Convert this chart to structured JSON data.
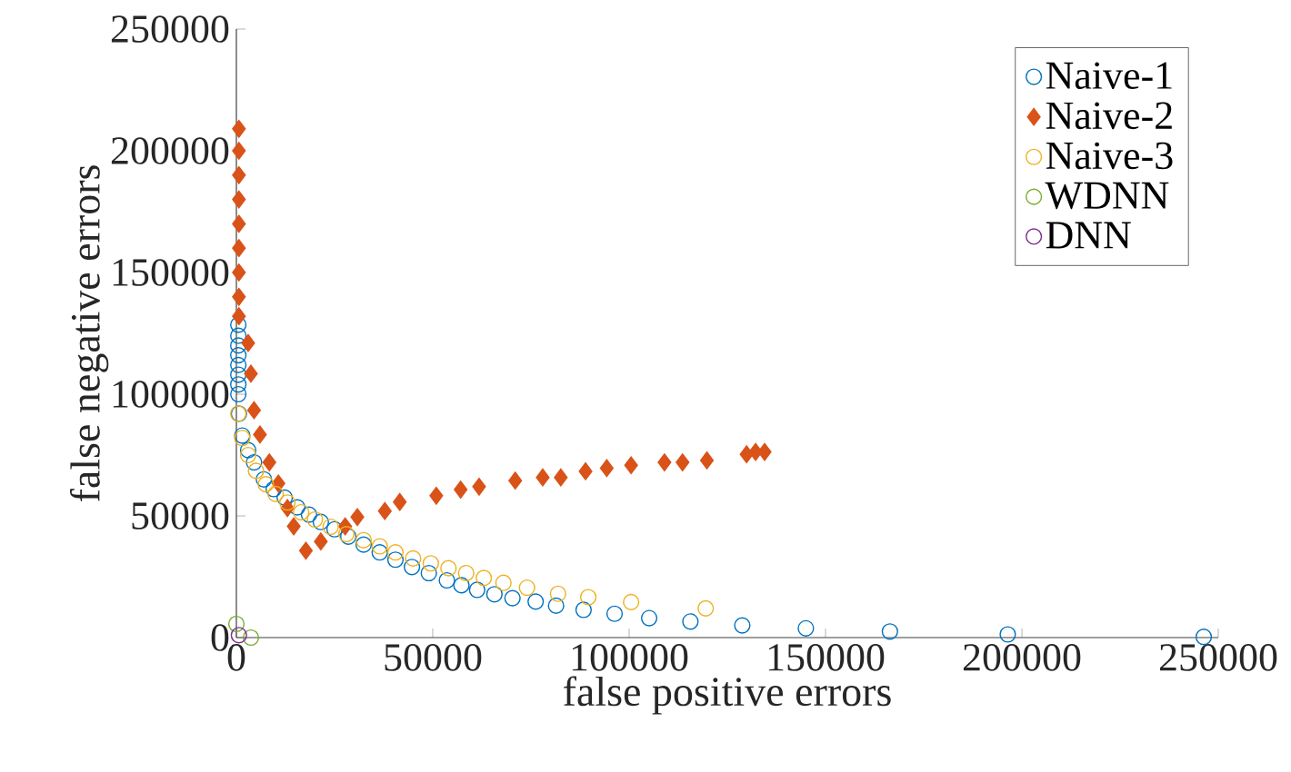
{
  "chart_data": {
    "type": "scatter",
    "xlabel": "false positive errors",
    "ylabel": "false negative errors",
    "xlim": [
      0,
      250000
    ],
    "ylim": [
      0,
      250000
    ],
    "xticks": [
      0,
      50000,
      100000,
      150000,
      200000,
      250000
    ],
    "yticks": [
      0,
      50000,
      100000,
      150000,
      200000,
      250000
    ],
    "legend": "top right",
    "grid": false,
    "series": [
      {
        "name": "Naive-1",
        "color": "#0072bd",
        "marker": "circle",
        "x": [
          500,
          500,
          500,
          500,
          500,
          500,
          500,
          500,
          650,
          1500,
          3000,
          4500,
          7000,
          9500,
          12300,
          15500,
          18500,
          21500,
          25000,
          28500,
          32400,
          36500,
          40500,
          44700,
          49000,
          53600,
          57300,
          61300,
          65700,
          70300,
          76200,
          81400,
          88400,
          96300,
          105100,
          115600,
          128800,
          145000,
          166400,
          196400,
          246300
        ],
        "values": [
          128500,
          124000,
          120000,
          116000,
          112000,
          108000,
          104000,
          100000,
          92000,
          83000,
          77000,
          72000,
          65000,
          61000,
          57500,
          53500,
          50500,
          47500,
          44500,
          41500,
          38200,
          35000,
          32000,
          29000,
          26500,
          23500,
          21500,
          19600,
          17800,
          16200,
          14800,
          13100,
          11400,
          9800,
          8000,
          6600,
          5000,
          3800,
          2500,
          1300,
          300
        ]
      },
      {
        "name": "Naive-2",
        "color": "#d95319",
        "marker": "diamond",
        "x": [
          650,
          650,
          650,
          650,
          650,
          650,
          650,
          650,
          650,
          3000,
          3700,
          4500,
          6000,
          8400,
          10700,
          13000,
          14600,
          17700,
          21500,
          27700,
          30800,
          37800,
          41600,
          50900,
          57100,
          61800,
          71000,
          78000,
          82600,
          88900,
          94300,
          100500,
          109000,
          113600,
          119800,
          129900,
          132200,
          134500
        ],
        "values": [
          209000,
          200000,
          190000,
          180000,
          170000,
          160000,
          150000,
          140000,
          132000,
          121000,
          108400,
          93400,
          83400,
          72000,
          63300,
          53200,
          45700,
          35700,
          39500,
          45700,
          49500,
          52000,
          55700,
          58300,
          60800,
          62000,
          64500,
          65800,
          65800,
          68300,
          69600,
          70800,
          72000,
          72000,
          72800,
          75300,
          76300,
          76300
        ]
      },
      {
        "name": "Naive-3",
        "color": "#edb120",
        "marker": "circle",
        "x": [
          500,
          1500,
          3000,
          5000,
          7500,
          10000,
          13000,
          16500,
          20000,
          24000,
          28000,
          32400,
          36500,
          40500,
          45000,
          49500,
          54000,
          58500,
          63000,
          68000,
          74000,
          81900,
          89600,
          100500,
          119500
        ],
        "values": [
          92000,
          82000,
          75000,
          68500,
          63000,
          59000,
          55500,
          51500,
          48500,
          45500,
          42500,
          40000,
          37500,
          35000,
          32500,
          30500,
          28500,
          26500,
          24500,
          22500,
          20500,
          18000,
          16600,
          14600,
          12000
        ]
      },
      {
        "name": "WDNN",
        "color": "#77ac30",
        "marker": "circle",
        "x": [
          0,
          3700
        ],
        "values": [
          5600,
          0
        ]
      },
      {
        "name": "DNN",
        "color": "#7e2f8e",
        "marker": "circle",
        "x": [
          650
        ],
        "values": [
          1000
        ]
      }
    ]
  }
}
